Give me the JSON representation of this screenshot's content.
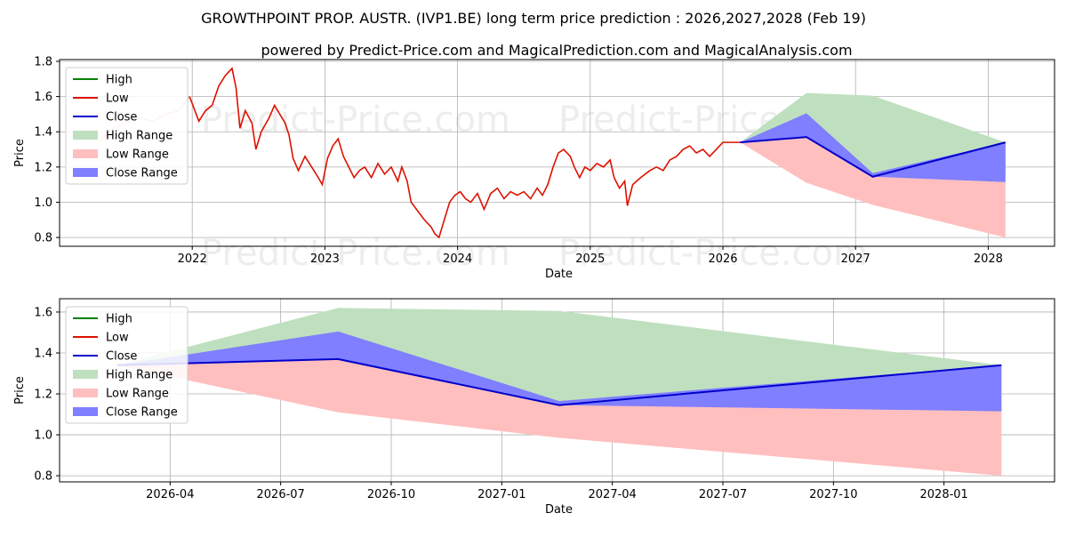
{
  "title": "GROWTHPOINT PROP. AUSTR. (IVP1.BE) long term price prediction : 2026,2027,2028 (Feb 19)",
  "subtitle": "powered by Predict-Price.com and MagicalPrediction.com and MagicalAnalysis.com",
  "watermark": "Predict-Price.com",
  "colors": {
    "high": "#008000",
    "low": "#dd1100",
    "close": "#0000cc",
    "high_range": "#bfe0bf",
    "low_range": "#ffbfbf",
    "close_range": "#7f7fff"
  },
  "chart_data": [
    {
      "type": "line",
      "panel": "top",
      "xlabel": "Date",
      "ylabel": "Price",
      "xlim": [
        2021.0,
        2028.5
      ],
      "ylim": [
        0.75,
        1.81
      ],
      "x_ticks": [
        2022,
        2023,
        2024,
        2025,
        2026,
        2027,
        2028
      ],
      "x_tick_labels": [
        "2022",
        "2023",
        "2024",
        "2025",
        "2026",
        "2027",
        "2028"
      ],
      "y_ticks": [
        0.8,
        1.0,
        1.2,
        1.4,
        1.6,
        1.8
      ],
      "y_tick_labels": [
        "0.8",
        "1.0",
        "1.2",
        "1.4",
        "1.6",
        "1.8"
      ],
      "grid": true,
      "legend": {
        "position": "top-left",
        "entries": [
          "High",
          "Low",
          "Close",
          "High Range",
          "Low Range",
          "Close Range"
        ]
      },
      "history": {
        "name": "Low",
        "faded_until": 2022.0,
        "points": [
          [
            2021.3,
            1.35
          ],
          [
            2021.4,
            1.42
          ],
          [
            2021.5,
            1.45
          ],
          [
            2021.6,
            1.48
          ],
          [
            2021.7,
            1.46
          ],
          [
            2021.8,
            1.5
          ],
          [
            2021.9,
            1.52
          ],
          [
            2021.98,
            1.6
          ],
          [
            2022.05,
            1.46
          ],
          [
            2022.1,
            1.52
          ],
          [
            2022.15,
            1.55
          ],
          [
            2022.2,
            1.66
          ],
          [
            2022.25,
            1.72
          ],
          [
            2022.3,
            1.76
          ],
          [
            2022.33,
            1.65
          ],
          [
            2022.36,
            1.42
          ],
          [
            2022.4,
            1.52
          ],
          [
            2022.45,
            1.45
          ],
          [
            2022.48,
            1.3
          ],
          [
            2022.52,
            1.4
          ],
          [
            2022.58,
            1.48
          ],
          [
            2022.62,
            1.55
          ],
          [
            2022.66,
            1.5
          ],
          [
            2022.7,
            1.45
          ],
          [
            2022.73,
            1.38
          ],
          [
            2022.76,
            1.25
          ],
          [
            2022.8,
            1.18
          ],
          [
            2022.85,
            1.26
          ],
          [
            2022.9,
            1.2
          ],
          [
            2022.95,
            1.14
          ],
          [
            2022.98,
            1.1
          ],
          [
            2023.02,
            1.25
          ],
          [
            2023.06,
            1.32
          ],
          [
            2023.1,
            1.36
          ],
          [
            2023.14,
            1.26
          ],
          [
            2023.18,
            1.2
          ],
          [
            2023.22,
            1.14
          ],
          [
            2023.26,
            1.18
          ],
          [
            2023.3,
            1.2
          ],
          [
            2023.35,
            1.14
          ],
          [
            2023.4,
            1.22
          ],
          [
            2023.45,
            1.16
          ],
          [
            2023.5,
            1.2
          ],
          [
            2023.55,
            1.12
          ],
          [
            2023.58,
            1.2
          ],
          [
            2023.62,
            1.12
          ],
          [
            2023.65,
            1.0
          ],
          [
            2023.7,
            0.95
          ],
          [
            2023.75,
            0.9
          ],
          [
            2023.8,
            0.86
          ],
          [
            2023.83,
            0.82
          ],
          [
            2023.86,
            0.8
          ],
          [
            2023.9,
            0.9
          ],
          [
            2023.94,
            1.0
          ],
          [
            2023.98,
            1.04
          ],
          [
            2024.02,
            1.06
          ],
          [
            2024.06,
            1.02
          ],
          [
            2024.1,
            1.0
          ],
          [
            2024.15,
            1.05
          ],
          [
            2024.2,
            0.96
          ],
          [
            2024.25,
            1.05
          ],
          [
            2024.3,
            1.08
          ],
          [
            2024.35,
            1.02
          ],
          [
            2024.4,
            1.06
          ],
          [
            2024.45,
            1.04
          ],
          [
            2024.5,
            1.06
          ],
          [
            2024.55,
            1.02
          ],
          [
            2024.6,
            1.08
          ],
          [
            2024.64,
            1.04
          ],
          [
            2024.68,
            1.1
          ],
          [
            2024.72,
            1.2
          ],
          [
            2024.76,
            1.28
          ],
          [
            2024.8,
            1.3
          ],
          [
            2024.85,
            1.26
          ],
          [
            2024.88,
            1.2
          ],
          [
            2024.92,
            1.14
          ],
          [
            2024.96,
            1.2
          ],
          [
            2025.0,
            1.18
          ],
          [
            2025.05,
            1.22
          ],
          [
            2025.1,
            1.2
          ],
          [
            2025.15,
            1.24
          ],
          [
            2025.18,
            1.14
          ],
          [
            2025.22,
            1.08
          ],
          [
            2025.26,
            1.12
          ],
          [
            2025.28,
            0.98
          ],
          [
            2025.32,
            1.1
          ],
          [
            2025.38,
            1.14
          ],
          [
            2025.45,
            1.18
          ],
          [
            2025.5,
            1.2
          ],
          [
            2025.55,
            1.18
          ],
          [
            2025.6,
            1.24
          ],
          [
            2025.65,
            1.26
          ],
          [
            2025.7,
            1.3
          ],
          [
            2025.75,
            1.32
          ],
          [
            2025.8,
            1.28
          ],
          [
            2025.85,
            1.3
          ],
          [
            2025.9,
            1.26
          ],
          [
            2025.95,
            1.3
          ],
          [
            2026.0,
            1.34
          ],
          [
            2026.13,
            1.34
          ]
        ]
      },
      "forecast": {
        "x": [
          2026.13,
          2026.63,
          2027.13,
          2028.13
        ],
        "high": [
          1.34,
          1.62,
          1.605,
          1.34
        ],
        "low": [
          1.34,
          1.11,
          0.985,
          0.8
        ],
        "close": [
          1.34,
          1.37,
          1.145,
          1.34
        ],
        "close_upper": [
          1.34,
          1.505,
          1.165,
          1.34
        ],
        "close_lower": [
          1.34,
          1.37,
          1.145,
          1.115
        ]
      }
    },
    {
      "type": "line",
      "panel": "bottom",
      "xlabel": "Date",
      "ylabel": "Price",
      "xlim": [
        2026.0,
        2028.25
      ],
      "ylim": [
        0.77,
        1.665
      ],
      "x_ticks": [
        2026.25,
        2026.5,
        2026.75,
        2027.0,
        2027.25,
        2027.5,
        2027.75,
        2028.0
      ],
      "x_tick_labels": [
        "2026-04",
        "2026-07",
        "2026-10",
        "2027-01",
        "2027-04",
        "2027-07",
        "2027-10",
        "2028-01"
      ],
      "y_ticks": [
        0.8,
        1.0,
        1.2,
        1.4,
        1.6
      ],
      "y_tick_labels": [
        "0.8",
        "1.0",
        "1.2",
        "1.4",
        "1.6"
      ],
      "grid": true,
      "legend": {
        "position": "top-left",
        "entries": [
          "High",
          "Low",
          "Close",
          "High Range",
          "Low Range",
          "Close Range"
        ]
      },
      "forecast": {
        "x": [
          2026.13,
          2026.63,
          2027.13,
          2028.13
        ],
        "high": [
          1.34,
          1.62,
          1.605,
          1.34
        ],
        "low": [
          1.34,
          1.11,
          0.985,
          0.8
        ],
        "close": [
          1.34,
          1.37,
          1.145,
          1.34
        ],
        "close_upper": [
          1.34,
          1.505,
          1.165,
          1.34
        ],
        "close_lower": [
          1.34,
          1.37,
          1.145,
          1.115
        ]
      }
    }
  ]
}
